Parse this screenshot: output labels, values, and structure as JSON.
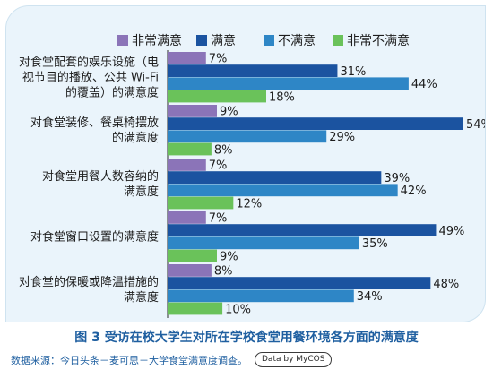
{
  "chart_data": {
    "type": "bar",
    "orientation": "horizontal",
    "categories": [
      "对食堂配套的娱乐设施（电视节目的播放、公共Wi-Fi的覆盖）的满意度",
      "对食堂装修、餐桌椅摆放的满意度",
      "对食堂用餐人数容纳的满意度",
      "对食堂窗口设置的满意度",
      "对食堂的保暖或降温措施的满意度"
    ],
    "category_lines": [
      [
        "对食堂配套的娱乐设施（电",
        "视节目的播放、公共 Wi-Fi",
        "的覆盖）的满意度"
      ],
      [
        "对食堂装修、餐桌椅摆放",
        "的满意度"
      ],
      [
        "对食堂用餐人数容纳的",
        "满意度"
      ],
      [
        "对食堂窗口设置的满意度"
      ],
      [
        "对食堂的保暖或降温措施的",
        "满意度"
      ]
    ],
    "series": [
      {
        "name": "非常满意",
        "color": "#8b74b8",
        "values": [
          7,
          9,
          7,
          7,
          8
        ]
      },
      {
        "name": "满意",
        "color": "#1b53a0",
        "values": [
          31,
          54,
          39,
          49,
          48
        ]
      },
      {
        "name": "不满意",
        "color": "#2e86c6",
        "values": [
          44,
          29,
          42,
          35,
          34
        ]
      },
      {
        "name": "非常不满意",
        "color": "#6ac25a",
        "values": [
          18,
          8,
          12,
          9,
          10
        ]
      }
    ],
    "value_suffix": "%",
    "xlim": [
      0,
      54
    ],
    "grid": false,
    "legend_position": "top"
  },
  "caption": "图 3  受访在校大学生对所在学校食堂用餐环境各方面的满意度",
  "source": "数据来源：今日头条－麦可思－大学食堂满意度调查。",
  "badge": "Data by MyCOS"
}
